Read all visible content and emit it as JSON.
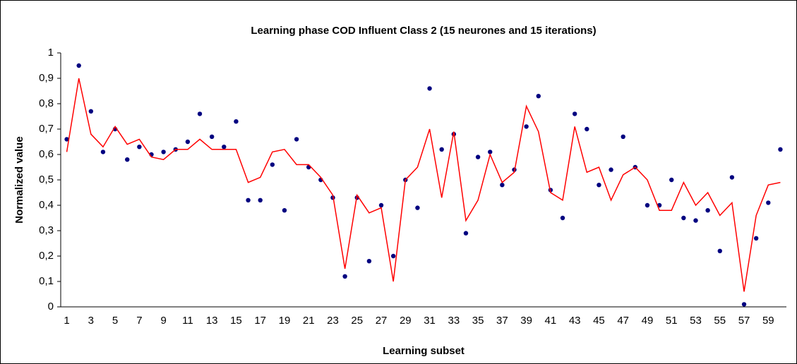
{
  "chart_data": {
    "type": "line",
    "title": "Learning phase COD Influent Class 2 (15 neurones and 15 iterations)",
    "x_label": "Learning subset",
    "y_label": "Normalized value",
    "categories": [
      1,
      null,
      3,
      null,
      5,
      null,
      7,
      null,
      9,
      null,
      11,
      null,
      13,
      null,
      15,
      null,
      17,
      null,
      19,
      null,
      21,
      null,
      23,
      null,
      25,
      null,
      27,
      null,
      29,
      null,
      31,
      null,
      33,
      null,
      35,
      null,
      37,
      null,
      39,
      null,
      41,
      null,
      43,
      null,
      45,
      null,
      47,
      null,
      49,
      null,
      51,
      null,
      53,
      null,
      55,
      null,
      57,
      null,
      59,
      null
    ],
    "series": [
      {
        "color": "#000080",
        "mode": "markers",
        "values": [
          0.66,
          0.95,
          0.77,
          0.61,
          0.7,
          0.58,
          0.63,
          0.6,
          0.61,
          0.62,
          0.65,
          0.76,
          0.67,
          0.63,
          0.73,
          0.42,
          0.42,
          0.56,
          0.38,
          0.66,
          0.55,
          0.5,
          0.43,
          0.12,
          0.43,
          0.18,
          0.4,
          0.2,
          0.5,
          0.39,
          0.86,
          0.62,
          0.68,
          0.29,
          0.59,
          0.61,
          0.48,
          0.54,
          0.71,
          0.83,
          0.46,
          0.35,
          0.76,
          0.7,
          0.48,
          0.54,
          0.67,
          0.55,
          0.4,
          0.4,
          0.5,
          0.35,
          0.34,
          0.38,
          0.22,
          0.51,
          0.01,
          0.27,
          0.41,
          0.62
        ]
      },
      {
        "color": "#ff0000",
        "mode": "line",
        "values": [
          0.61,
          0.9,
          0.68,
          0.63,
          0.71,
          0.64,
          0.66,
          0.59,
          0.58,
          0.62,
          0.62,
          0.66,
          0.62,
          0.62,
          0.62,
          0.49,
          0.51,
          0.61,
          0.62,
          0.56,
          0.56,
          0.51,
          0.44,
          0.15,
          0.44,
          0.37,
          0.39,
          0.1,
          0.5,
          0.55,
          0.7,
          0.43,
          0.69,
          0.34,
          0.42,
          0.6,
          0.49,
          0.53,
          0.79,
          0.69,
          0.45,
          0.42,
          0.71,
          0.53,
          0.55,
          0.42,
          0.52,
          0.55,
          0.5,
          0.38,
          0.38,
          0.49,
          0.4,
          0.45,
          0.36,
          0.41,
          0.06,
          0.36,
          0.48,
          0.49
        ]
      }
    ],
    "ylim": [
      0,
      1
    ],
    "yticks": [
      0,
      {
        "value": 0.1,
        "label": "0,1"
      },
      {
        "value": 0.2,
        "label": "0,2"
      },
      {
        "value": 0.3,
        "label": "0,3"
      },
      {
        "value": 0.4,
        "label": "0,4"
      },
      {
        "value": 0.5,
        "label": "0,5"
      },
      {
        "value": 0.6,
        "label": "0,6"
      },
      {
        "value": 0.7,
        "label": "0,7"
      },
      {
        "value": 0.8,
        "label": "0,8"
      },
      {
        "value": 0.9,
        "label": "0,9"
      },
      1
    ],
    "grid": false
  }
}
